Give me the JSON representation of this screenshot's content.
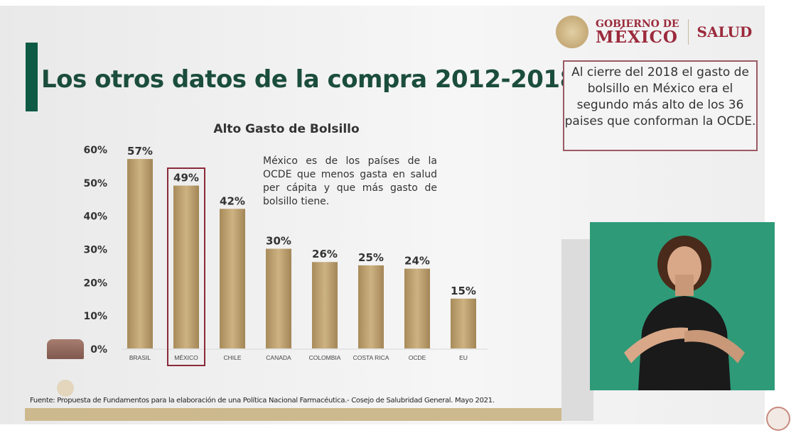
{
  "slide": {
    "title": "Los otros datos de la compra 2012-2018",
    "logo": {
      "line1": "GOBIERNO DE",
      "line2": "MÉXICO",
      "department": "SALUD"
    },
    "info_box": "Al cierre del 2018 el gasto de bolsillo en México era el segundo más alto de los 36 paises que conforman la OCDE.",
    "note": "México es de los países de la OCDE que menos gasta en salud per cápita y que más gasto de bolsillo tiene.",
    "source": "Fuente: Propuesta de Fundamentos para la elaboración de una Política Nacional Farmacéutica.- Cosejo de Salubridad General. Mayo 2021."
  },
  "colors": {
    "accent_green": "#0f5a45",
    "bar_gold": "#b89c68",
    "highlight": "#8a2a3a",
    "interpreter_bg": "#2e9a78"
  },
  "chart_data": {
    "type": "bar",
    "title": "Alto Gasto de Bolsillo",
    "categories": [
      "BRASIL",
      "MÉXICO",
      "CHILE",
      "CANADA",
      "COLOMBIA",
      "COSTA RICA",
      "OCDE",
      "EU"
    ],
    "values": [
      57,
      49,
      42,
      30,
      26,
      25,
      24,
      15
    ],
    "data_labels": [
      "57%",
      "49%",
      "42%",
      "30%",
      "26%",
      "25%",
      "24%",
      "15%"
    ],
    "ylim": [
      0,
      60
    ],
    "yticks": [
      "0%",
      "10%",
      "20%",
      "30%",
      "40%",
      "50%",
      "60%"
    ],
    "grid": false,
    "highlighted_category": "MÉXICO"
  }
}
